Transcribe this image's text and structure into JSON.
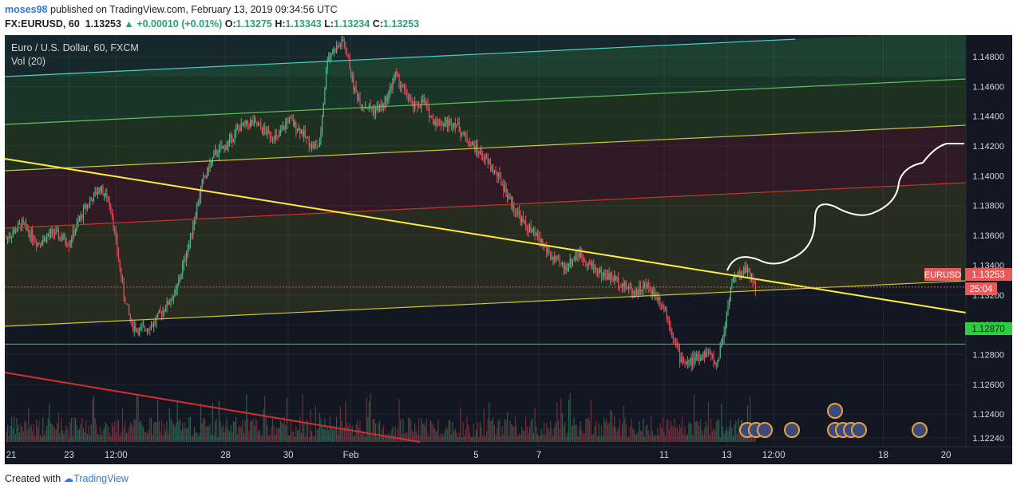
{
  "header": {
    "user": "moses98",
    "published": "published on TradingView.com, February 13, 2019 09:34:56 UTC",
    "symbol": "FX:EURUSD, 60",
    "last": "1.13253",
    "change": "+0.00010 (+0.01%)",
    "o_label": "O:",
    "o": "1.13275",
    "h_label": "H:",
    "h": "1.13343",
    "l_label": "L:",
    "l": "1.13234",
    "c_label": "C:",
    "c": "1.13253"
  },
  "legend": {
    "title": "Euro / U.S. Dollar, 60, FXCM",
    "vol": "Vol (20)"
  },
  "footer": {
    "created": "Created with",
    "brand": "TradingView"
  },
  "colors": {
    "background": "#131722",
    "up": "#53b987",
    "down": "#eb4d5c",
    "trendline": "#ffeb3b",
    "channel_teal": "#4dd0c4",
    "channel_green": "#5ec25c",
    "channel_yellow": "#c7c93a",
    "channel_red": "#c0392b",
    "support": "#2ecc40",
    "price_label": "#e85a5a"
  },
  "chart_data": {
    "type": "candlestick",
    "ylim": [
      1.1212,
      1.1492
    ],
    "yticks": [
      "1.14800",
      "1.14600",
      "1.14400",
      "1.14200",
      "1.14000",
      "1.13800",
      "1.13600",
      "1.13400",
      "1.13200",
      "1.13000",
      "1.12800",
      "1.12600",
      "1.12400",
      "1.12240"
    ],
    "ytick_values": [
      1.148,
      1.146,
      1.144,
      1.142,
      1.14,
      1.138,
      1.136,
      1.134,
      1.132,
      1.13,
      1.128,
      1.126,
      1.124,
      1.1224
    ],
    "xticks": [
      "21",
      "23",
      "12:00",
      "28",
      "30",
      "Feb",
      "5",
      "7",
      "11",
      "13",
      "12:00",
      "18",
      "20"
    ],
    "xtick_hours": [
      0,
      48,
      84,
      168,
      216,
      264,
      360,
      408,
      504,
      552,
      588,
      672,
      720
    ],
    "current_price": {
      "label": "EURUSD",
      "value": "1.13253",
      "num": 1.13253,
      "countdown": "25:04"
    },
    "support_level": {
      "value": "1.12870",
      "num": 1.1287
    },
    "close_path": [
      [
        0,
        1.1358
      ],
      [
        12,
        1.1368
      ],
      [
        24,
        1.1355
      ],
      [
        36,
        1.1362
      ],
      [
        48,
        1.1355
      ],
      [
        60,
        1.1378
      ],
      [
        72,
        1.1392
      ],
      [
        80,
        1.138
      ],
      [
        84,
        1.1355
      ],
      [
        90,
        1.132
      ],
      [
        96,
        1.13
      ],
      [
        102,
        1.1296
      ],
      [
        112,
        1.13
      ],
      [
        120,
        1.131
      ],
      [
        130,
        1.1322
      ],
      [
        140,
        1.1355
      ],
      [
        150,
        1.1395
      ],
      [
        160,
        1.1415
      ],
      [
        168,
        1.142
      ],
      [
        178,
        1.1432
      ],
      [
        188,
        1.1436
      ],
      [
        198,
        1.143
      ],
      [
        208,
        1.1425
      ],
      [
        216,
        1.1438
      ],
      [
        226,
        1.143
      ],
      [
        234,
        1.142
      ],
      [
        240,
        1.142
      ],
      [
        246,
        1.148
      ],
      [
        252,
        1.1485
      ],
      [
        258,
        1.149
      ],
      [
        262,
        1.1478
      ],
      [
        266,
        1.146
      ],
      [
        272,
        1.1448
      ],
      [
        282,
        1.1444
      ],
      [
        290,
        1.1448
      ],
      [
        298,
        1.1468
      ],
      [
        306,
        1.1455
      ],
      [
        312,
        1.1446
      ],
      [
        320,
        1.145
      ],
      [
        326,
        1.1438
      ],
      [
        334,
        1.1435
      ],
      [
        344,
        1.1436
      ],
      [
        352,
        1.1425
      ],
      [
        360,
        1.1418
      ],
      [
        368,
        1.141
      ],
      [
        378,
        1.1398
      ],
      [
        388,
        1.138
      ],
      [
        398,
        1.1366
      ],
      [
        408,
        1.1358
      ],
      [
        418,
        1.1345
      ],
      [
        428,
        1.1338
      ],
      [
        438,
        1.1348
      ],
      [
        448,
        1.134
      ],
      [
        456,
        1.1334
      ],
      [
        464,
        1.1332
      ],
      [
        474,
        1.1326
      ],
      [
        482,
        1.1322
      ],
      [
        490,
        1.1326
      ],
      [
        498,
        1.132
      ],
      [
        504,
        1.1312
      ],
      [
        510,
        1.1296
      ],
      [
        516,
        1.1278
      ],
      [
        522,
        1.1274
      ],
      [
        530,
        1.1278
      ],
      [
        538,
        1.1282
      ],
      [
        544,
        1.1272
      ],
      [
        550,
        1.1296
      ],
      [
        556,
        1.133
      ],
      [
        562,
        1.1334
      ],
      [
        568,
        1.1338
      ],
      [
        574,
        1.1326
      ]
    ],
    "volume": {
      "type": "bar",
      "note": "hourly volume histogram, relative heights"
    }
  }
}
